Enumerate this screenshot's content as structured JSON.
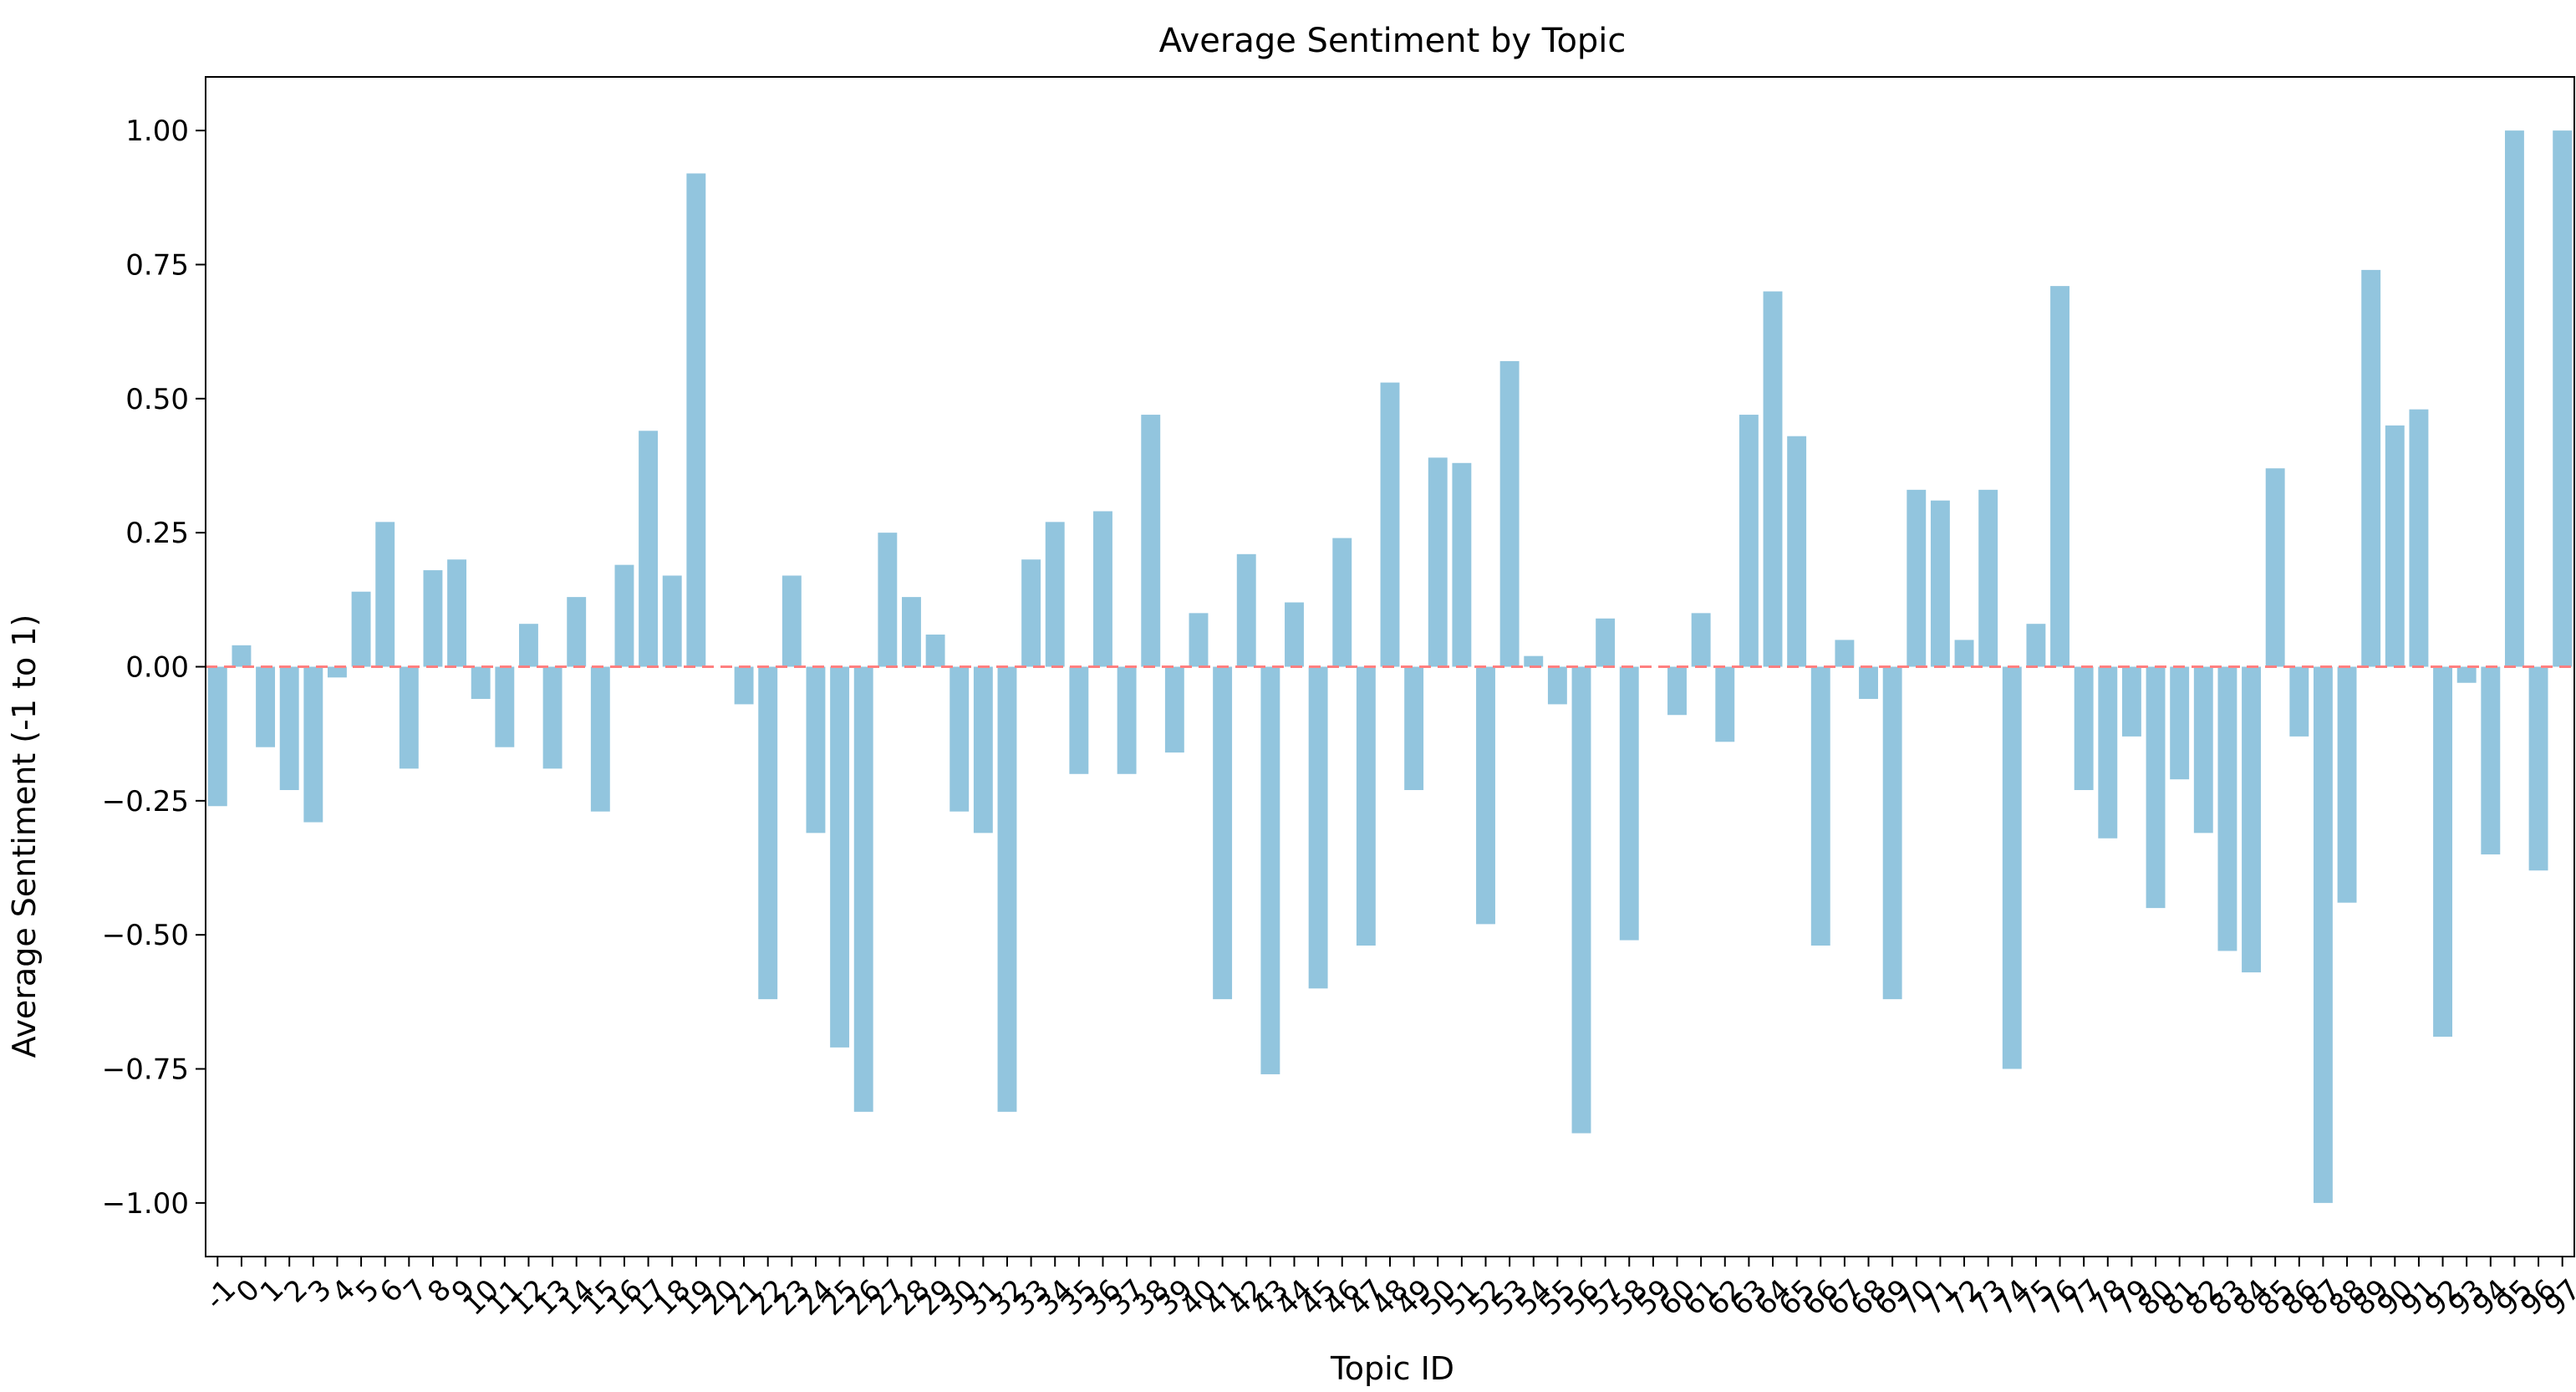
{
  "chart_data": {
    "type": "bar",
    "title": "Average Sentiment by Topic",
    "xlabel": "Topic ID",
    "ylabel": "Average Sentiment (-1 to 1)",
    "ylim": [
      -1.1,
      1.1
    ],
    "yticks": [
      -1.0,
      -0.75,
      -0.5,
      -0.25,
      0.0,
      0.25,
      0.5,
      0.75,
      1.0
    ],
    "ytick_labels": [
      "−1.00",
      "−0.75",
      "−0.50",
      "−0.25",
      "0.00",
      "0.25",
      "0.50",
      "0.75",
      "1.00"
    ],
    "grid": false,
    "legend": "none",
    "bar_color": "#92c5de",
    "reference_line": {
      "y": 0.0,
      "color": "#ff8080",
      "style": "dashed"
    },
    "categories": [
      "-1",
      "0",
      "1",
      "2",
      "3",
      "4",
      "5",
      "6",
      "7",
      "8",
      "9",
      "10",
      "11",
      "12",
      "13",
      "14",
      "15",
      "16",
      "17",
      "18",
      "19",
      "20",
      "21",
      "22",
      "23",
      "24",
      "25",
      "26",
      "27",
      "28",
      "29",
      "30",
      "31",
      "32",
      "33",
      "34",
      "35",
      "36",
      "37",
      "38",
      "39",
      "40",
      "41",
      "42",
      "43",
      "44",
      "45",
      "46",
      "47",
      "48",
      "49",
      "50",
      "51",
      "52",
      "53",
      "54",
      "55",
      "56",
      "57",
      "58",
      "59",
      "60",
      "61",
      "62",
      "63",
      "64",
      "65",
      "66",
      "67",
      "68",
      "69",
      "70",
      "71",
      "72",
      "73",
      "74",
      "75",
      "76",
      "77",
      "78",
      "79",
      "80",
      "81",
      "82",
      "83",
      "84",
      "85",
      "86",
      "87",
      "88",
      "89",
      "90",
      "91",
      "92",
      "93",
      "94",
      "95",
      "96",
      "97"
    ],
    "values": [
      -0.26,
      0.04,
      -0.15,
      -0.23,
      -0.29,
      -0.02,
      0.14,
      0.27,
      -0.19,
      0.18,
      0.2,
      -0.06,
      -0.15,
      0.08,
      -0.19,
      0.13,
      -0.27,
      0.19,
      0.44,
      0.17,
      0.92,
      0.0,
      -0.07,
      -0.62,
      0.17,
      -0.31,
      -0.71,
      -0.83,
      0.25,
      0.13,
      0.06,
      -0.27,
      -0.31,
      -0.83,
      0.2,
      0.27,
      -0.2,
      0.29,
      -0.2,
      0.47,
      -0.16,
      0.1,
      -0.62,
      0.21,
      -0.76,
      0.12,
      -0.6,
      0.24,
      -0.52,
      0.53,
      -0.23,
      0.39,
      0.38,
      -0.48,
      0.57,
      0.02,
      -0.07,
      -0.87,
      0.09,
      -0.51,
      0.0,
      -0.09,
      0.1,
      -0.14,
      0.47,
      0.7,
      0.43,
      -0.52,
      0.05,
      -0.06,
      -0.62,
      0.33,
      0.31,
      0.05,
      0.33,
      -0.75,
      0.08,
      0.71,
      -0.23,
      -0.32,
      -0.13,
      -0.45,
      -0.21,
      -0.31,
      -0.53,
      -0.57,
      0.37,
      -0.13,
      -1.0,
      -0.44,
      0.74,
      0.45,
      0.48,
      -0.69,
      -0.03,
      -0.35,
      1.0,
      -0.38,
      1.0
    ]
  }
}
